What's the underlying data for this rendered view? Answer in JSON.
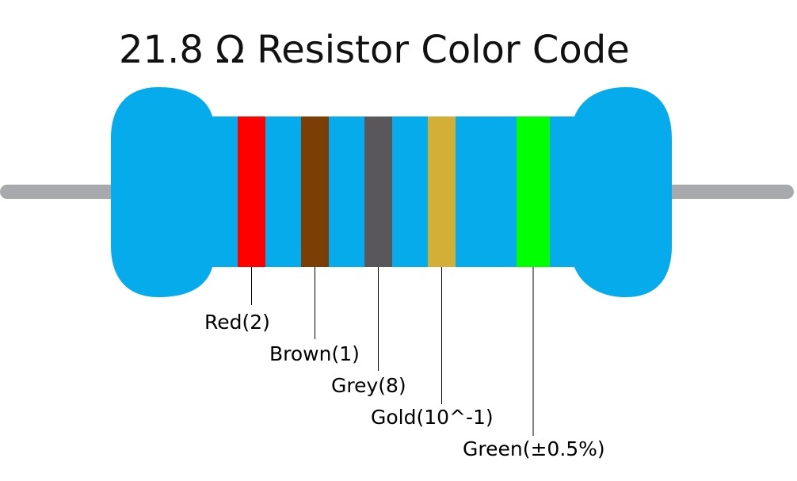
{
  "title": "21.8 Ω Resistor Color Code",
  "bands": [
    {
      "label": "Red(2)",
      "color": "#ff0000"
    },
    {
      "label": "Brown(1)",
      "color": "#7b3f06"
    },
    {
      "label": "Grey(8)",
      "color": "#59575a"
    },
    {
      "label": "Gold(10^-1)",
      "color": "#d4af37"
    },
    {
      "label": "Green(±0.5%)",
      "color": "#00ff00"
    }
  ]
}
